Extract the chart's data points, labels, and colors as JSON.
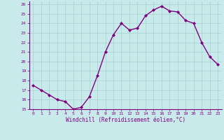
{
  "x": [
    0,
    1,
    2,
    3,
    4,
    5,
    6,
    7,
    8,
    9,
    10,
    11,
    12,
    13,
    14,
    15,
    16,
    17,
    18,
    19,
    20,
    21,
    22,
    23
  ],
  "y": [
    17.5,
    17.0,
    16.5,
    16.0,
    15.8,
    15.0,
    15.2,
    16.3,
    18.5,
    21.0,
    22.8,
    24.0,
    23.3,
    23.5,
    24.8,
    25.4,
    25.8,
    25.3,
    25.2,
    24.3,
    24.0,
    22.0,
    20.5,
    19.7
  ],
  "line_color": "#800080",
  "marker": "D",
  "marker_size": 2.0,
  "bg_color": "#c8eaea",
  "grid_color": "#aad4d4",
  "xlabel": "Windchill (Refroidissement éolien,°C)",
  "xlabel_color": "#800080",
  "tick_label_color": "#800080",
  "axis_label_color": "#800080",
  "ylim": [
    15,
    26
  ],
  "xlim": [
    -0.5,
    23.5
  ],
  "yticks": [
    15,
    16,
    17,
    18,
    19,
    20,
    21,
    22,
    23,
    24,
    25,
    26
  ],
  "xticks": [
    0,
    1,
    2,
    3,
    4,
    5,
    6,
    7,
    8,
    9,
    10,
    11,
    12,
    13,
    14,
    15,
    16,
    17,
    18,
    19,
    20,
    21,
    22,
    23
  ],
  "linewidth": 1.0,
  "spine_color": "#800080",
  "bottom_spine_color": "#800080"
}
